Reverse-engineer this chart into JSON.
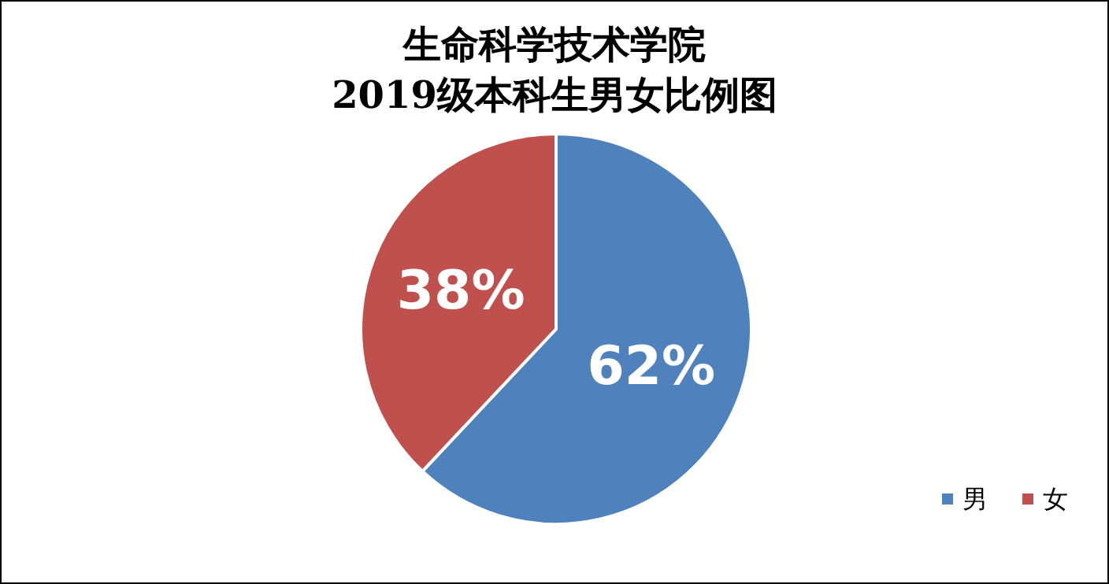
{
  "chart_data": {
    "type": "pie",
    "title": "生命科学技术学院\n2019级本科生男女比例图",
    "categories": [
      "男",
      "女"
    ],
    "values": [
      62,
      38
    ],
    "colors": [
      "#4f81bd",
      "#c0504d"
    ],
    "value_labels": [
      "62%",
      "38%"
    ],
    "legend": "bottom right"
  }
}
